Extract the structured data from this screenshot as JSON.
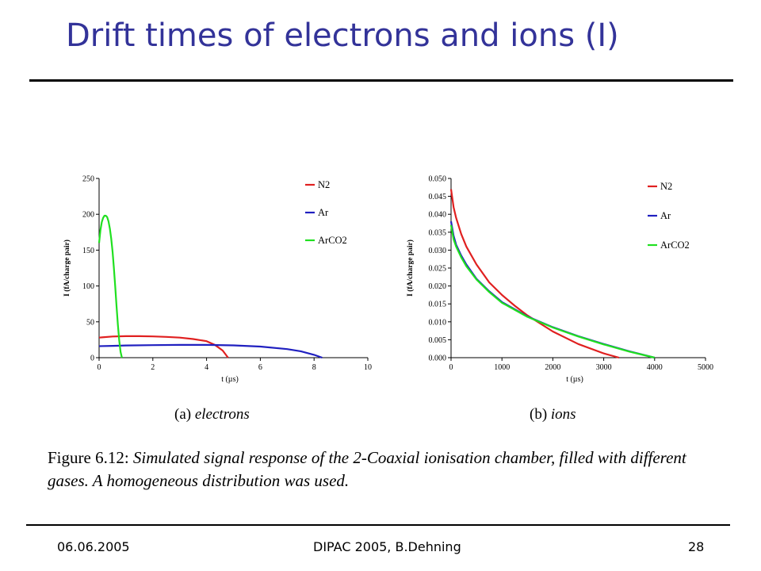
{
  "slide": {
    "title": "Drift times of electrons and ions (I)",
    "figure_caption_label": "Figure 6.12:",
    "figure_caption_text": "Simulated signal response of the 2-Coaxial ionisation chamber, filled with different gases. A homogeneous distribution was used.",
    "footer": {
      "date": "06.06.2005",
      "event": "DIPAC 2005, B.Dehning",
      "page": "28"
    },
    "colors": {
      "title": "#333399"
    }
  },
  "chart_data": [
    {
      "type": "line",
      "panel_label": "(a)",
      "panel_caption": "electrons",
      "xlabel": "t (µs)",
      "ylabel": "I (fA/charge pair)",
      "xlim": [
        0,
        10
      ],
      "ylim": [
        0,
        250
      ],
      "xticks": [
        "0",
        "2",
        "4",
        "6",
        "8",
        "10"
      ],
      "yticks": [
        "0",
        "50",
        "100",
        "150",
        "200",
        "250"
      ],
      "grid": false,
      "legend_position": "top-right",
      "series": [
        {
          "name": "N2",
          "color": "#e02020",
          "x": [
            0,
            0.5,
            1,
            1.5,
            2,
            2.5,
            3,
            3.5,
            4,
            4.3,
            4.6,
            4.8
          ],
          "y": [
            28,
            29.5,
            30,
            30,
            29.7,
            29,
            28,
            26,
            23,
            18,
            10,
            0
          ]
        },
        {
          "name": "Ar",
          "color": "#2020c0",
          "x": [
            0,
            0.5,
            1,
            2,
            3,
            4,
            5,
            6,
            7,
            7.5,
            8,
            8.3
          ],
          "y": [
            16,
            16.5,
            17,
            17.5,
            17.8,
            17.8,
            17.2,
            15.5,
            12,
            9,
            4,
            0
          ]
        },
        {
          "name": "ArCO2",
          "color": "#20e020",
          "x": [
            0,
            0.05,
            0.1,
            0.15,
            0.2,
            0.25,
            0.3,
            0.35,
            0.4,
            0.45,
            0.5,
            0.55,
            0.6,
            0.65,
            0.7,
            0.75,
            0.8,
            0.85
          ],
          "y": [
            160,
            178,
            189,
            195,
            198,
            198,
            196,
            190,
            180,
            166,
            148,
            126,
            100,
            72,
            46,
            24,
            8,
            0
          ]
        }
      ]
    },
    {
      "type": "line",
      "panel_label": "(b)",
      "panel_caption": "ions",
      "xlabel": "t (µs)",
      "ylabel": "I (fA/charge pair)",
      "xlim": [
        0,
        5000
      ],
      "ylim": [
        0,
        0.05
      ],
      "xticks": [
        "0",
        "1000",
        "2000",
        "3000",
        "4000",
        "5000"
      ],
      "yticks": [
        "0.000",
        "0.005",
        "0.010",
        "0.015",
        "0.020",
        "0.025",
        "0.030",
        "0.035",
        "0.040",
        "0.045",
        "0.050"
      ],
      "grid": false,
      "legend_position": "top-right",
      "series": [
        {
          "name": "N2",
          "color": "#e02020",
          "x": [
            0,
            50,
            100,
            200,
            300,
            500,
            750,
            1000,
            1250,
            1500,
            2000,
            2500,
            3000,
            3300
          ],
          "y": [
            0.047,
            0.042,
            0.039,
            0.0345,
            0.031,
            0.026,
            0.021,
            0.0175,
            0.0145,
            0.0118,
            0.0073,
            0.0038,
            0.0012,
            0.0
          ]
        },
        {
          "name": "Ar",
          "color": "#2020c0",
          "x": [
            0,
            50,
            100,
            200,
            300,
            500,
            750,
            1000,
            1500,
            2000,
            2500,
            3000,
            3500,
            4000
          ],
          "y": [
            0.038,
            0.034,
            0.0315,
            0.0285,
            0.026,
            0.022,
            0.0185,
            0.0155,
            0.0115,
            0.0085,
            0.006,
            0.0038,
            0.0018,
            0.0
          ]
        },
        {
          "name": "ArCO2",
          "color": "#20e020",
          "x": [
            0,
            50,
            100,
            200,
            300,
            500,
            750,
            1000,
            1500,
            2000,
            2500,
            3000,
            3500,
            4000
          ],
          "y": [
            0.037,
            0.033,
            0.031,
            0.028,
            0.0255,
            0.0218,
            0.0183,
            0.0153,
            0.0114,
            0.0084,
            0.0059,
            0.0037,
            0.0017,
            0.0
          ]
        }
      ]
    }
  ]
}
